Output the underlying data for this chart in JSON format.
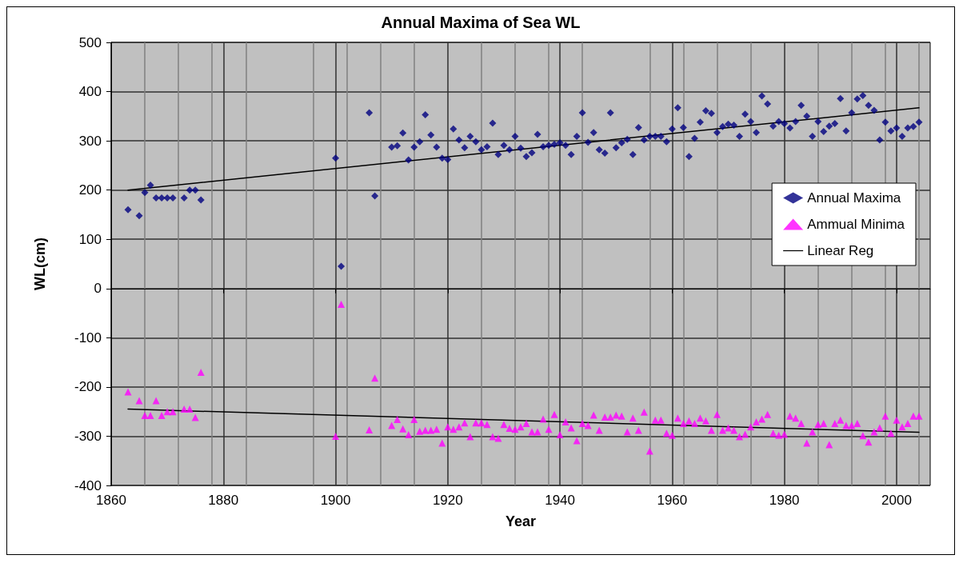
{
  "chart_data": {
    "type": "scatter",
    "title": "Annual Maxima of Sea WL",
    "xlabel": "Year",
    "ylabel": "WL(cm)",
    "xlim": [
      1860,
      2006
    ],
    "xticks": [
      1860,
      1880,
      1900,
      1920,
      1940,
      1960,
      1980,
      2000
    ],
    "ylim": [
      -400,
      500
    ],
    "yticks": [
      -400,
      -300,
      -200,
      -100,
      0,
      100,
      200,
      300,
      400,
      500
    ],
    "grid": true,
    "legend": "right",
    "series": [
      {
        "name": "Annual Maxima",
        "marker": "diamond",
        "color": "#000080",
        "x": [
          1863,
          1865,
          1866,
          1867,
          1868,
          1869,
          1870,
          1871,
          1873,
          1874,
          1875,
          1876,
          1900,
          1901,
          1906,
          1907,
          1910,
          1911,
          1912,
          1913,
          1914,
          1915,
          1916,
          1917,
          1918,
          1919,
          1920,
          1921,
          1922,
          1923,
          1924,
          1925,
          1926,
          1927,
          1928,
          1929,
          1930,
          1931,
          1932,
          1933,
          1934,
          1935,
          1936,
          1937,
          1938,
          1939,
          1940,
          1941,
          1942,
          1943,
          1944,
          1945,
          1946,
          1947,
          1948,
          1949,
          1950,
          1951,
          1952,
          1953,
          1954,
          1955,
          1956,
          1957,
          1958,
          1959,
          1960,
          1961,
          1962,
          1963,
          1964,
          1965,
          1966,
          1967,
          1968,
          1969,
          1970,
          1971,
          1972,
          1973,
          1974,
          1975,
          1976,
          1977,
          1978,
          1979,
          1980,
          1981,
          1982,
          1983,
          1984,
          1985,
          1986,
          1987,
          1988,
          1989,
          1990,
          1991,
          1992,
          1993,
          1994,
          1995,
          1996,
          1997,
          1998,
          1999,
          2000,
          2001,
          2002,
          2003,
          2004
        ],
        "values": [
          160,
          148,
          195,
          210,
          184,
          184,
          184,
          184,
          184,
          200,
          200,
          180,
          265,
          45,
          357,
          188,
          287,
          290,
          316,
          261,
          287,
          298,
          353,
          312,
          287,
          265,
          262,
          324,
          302,
          286,
          309,
          298,
          282,
          288,
          336,
          272,
          291,
          282,
          309,
          285,
          268,
          276,
          313,
          288,
          291,
          293,
          296,
          291,
          272,
          309,
          357,
          297,
          317,
          282,
          275,
          357,
          286,
          296,
          303,
          272,
          327,
          302,
          309,
          309,
          309,
          298,
          324,
          367,
          327,
          268,
          305,
          338,
          361,
          356,
          317,
          329,
          334,
          332,
          309,
          354,
          339,
          317,
          391,
          375,
          330,
          339,
          335,
          326,
          339,
          372,
          350,
          309,
          339,
          319,
          330,
          335,
          386,
          320,
          357,
          385,
          392,
          372,
          362,
          302,
          338,
          320,
          326,
          309,
          326,
          329,
          338
        ]
      },
      {
        "name": "Ammual Minima",
        "marker": "triangle",
        "color": "#ff00ff",
        "x": [
          1863,
          1865,
          1866,
          1867,
          1868,
          1869,
          1870,
          1871,
          1873,
          1874,
          1875,
          1876,
          1900,
          1901,
          1906,
          1907,
          1910,
          1911,
          1912,
          1913,
          1914,
          1915,
          1916,
          1917,
          1918,
          1919,
          1920,
          1921,
          1922,
          1923,
          1924,
          1925,
          1926,
          1927,
          1928,
          1929,
          1930,
          1931,
          1932,
          1933,
          1934,
          1935,
          1936,
          1937,
          1938,
          1939,
          1940,
          1941,
          1942,
          1943,
          1944,
          1945,
          1946,
          1947,
          1948,
          1949,
          1950,
          1951,
          1952,
          1953,
          1954,
          1955,
          1956,
          1957,
          1958,
          1959,
          1960,
          1961,
          1962,
          1963,
          1964,
          1965,
          1966,
          1967,
          1968,
          1969,
          1970,
          1971,
          1972,
          1973,
          1974,
          1975,
          1976,
          1977,
          1978,
          1979,
          1980,
          1981,
          1982,
          1983,
          1984,
          1985,
          1986,
          1987,
          1988,
          1989,
          1990,
          1991,
          1992,
          1993,
          1994,
          1995,
          1996,
          1997,
          1998,
          1999,
          2000,
          2001,
          2002,
          2003,
          2004
        ],
        "values": [
          -210,
          -228,
          -258,
          -258,
          -228,
          -258,
          -250,
          -250,
          -245,
          -245,
          -262,
          -170,
          -300,
          -32,
          -287,
          -182,
          -278,
          -266,
          -285,
          -297,
          -266,
          -290,
          -288,
          -288,
          -286,
          -314,
          -281,
          -286,
          -281,
          -273,
          -301,
          -273,
          -273,
          -276,
          -301,
          -304,
          -276,
          -284,
          -286,
          -281,
          -274,
          -291,
          -291,
          -265,
          -286,
          -256,
          -297,
          -271,
          -283,
          -309,
          -274,
          -278,
          -257,
          -288,
          -261,
          -261,
          -257,
          -259,
          -291,
          -263,
          -288,
          -251,
          -330,
          -267,
          -267,
          -294,
          -298,
          -263,
          -274,
          -269,
          -274,
          -263,
          -269,
          -288,
          -256,
          -288,
          -283,
          -288,
          -301,
          -296,
          -281,
          -271,
          -265,
          -256,
          -294,
          -298,
          -296,
          -259,
          -263,
          -274,
          -314,
          -291,
          -276,
          -274,
          -317,
          -274,
          -267,
          -278,
          -278,
          -274,
          -299,
          -312,
          -291,
          -283,
          -259,
          -294,
          -267,
          -281,
          -274,
          -259,
          -259
        ]
      },
      {
        "name": "Linear Reg",
        "type": "line",
        "marker": "none",
        "line_style": "solid",
        "color": "#000000",
        "x": [
          1863,
          2004
        ],
        "values": [
          200,
          367
        ]
      },
      {
        "type": "line",
        "marker": "none",
        "line_style": "solid",
        "color": "#000000",
        "x": [
          1863,
          2004
        ],
        "values": [
          -245,
          -292
        ]
      }
    ]
  }
}
